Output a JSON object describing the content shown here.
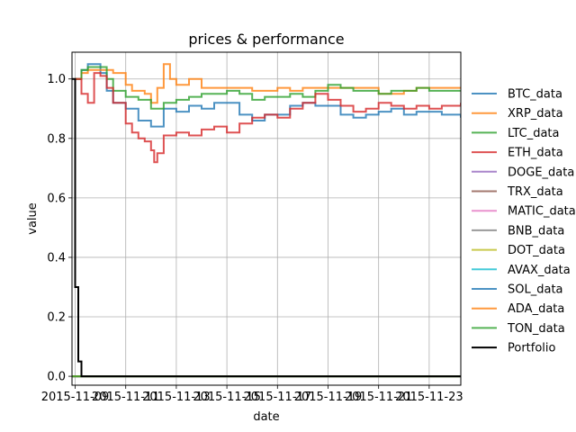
{
  "chart_data": {
    "type": "line",
    "title": "prices & performance",
    "xlabel": "date",
    "ylabel": "value",
    "xlim": [
      "2015-11-08T21:00",
      "2015-11-24T06:00"
    ],
    "ylim": [
      -0.03,
      1.09
    ],
    "grid": true,
    "legend_position": "right",
    "xticks": [
      "2015-11-09",
      "2015-11-11",
      "2015-11-13",
      "2015-11-15",
      "2015-11-17",
      "2015-11-19",
      "2015-11-21",
      "2015-11-23"
    ],
    "yticks": [
      "0.0",
      "0.2",
      "0.4",
      "0.6",
      "0.8",
      "1.0"
    ],
    "series": [
      {
        "name": "BTC_data",
        "color": "#1f77b4",
        "points": [
          [
            "2015-11-09T00:00",
            1.0
          ],
          [
            "2015-11-09T06:00",
            1.03
          ],
          [
            "2015-11-09T12:00",
            1.05
          ],
          [
            "2015-11-10T00:00",
            1.02
          ],
          [
            "2015-11-10T06:00",
            0.96
          ],
          [
            "2015-11-10T12:00",
            0.92
          ],
          [
            "2015-11-11T00:00",
            0.9
          ],
          [
            "2015-11-11T12:00",
            0.86
          ],
          [
            "2015-11-12T00:00",
            0.84
          ],
          [
            "2015-11-12T12:00",
            0.9
          ],
          [
            "2015-11-13T00:00",
            0.89
          ],
          [
            "2015-11-13T12:00",
            0.91
          ],
          [
            "2015-11-14T00:00",
            0.9
          ],
          [
            "2015-11-14T12:00",
            0.92
          ],
          [
            "2015-11-15T00:00",
            0.92
          ],
          [
            "2015-11-15T12:00",
            0.88
          ],
          [
            "2015-11-16T00:00",
            0.86
          ],
          [
            "2015-11-16T12:00",
            0.88
          ],
          [
            "2015-11-17T00:00",
            0.88
          ],
          [
            "2015-11-17T12:00",
            0.91
          ],
          [
            "2015-11-18T00:00",
            0.92
          ],
          [
            "2015-11-18T12:00",
            0.91
          ],
          [
            "2015-11-19T00:00",
            0.91
          ],
          [
            "2015-11-19T12:00",
            0.88
          ],
          [
            "2015-11-20T00:00",
            0.87
          ],
          [
            "2015-11-20T12:00",
            0.88
          ],
          [
            "2015-11-21T00:00",
            0.89
          ],
          [
            "2015-11-21T12:00",
            0.9
          ],
          [
            "2015-11-22T00:00",
            0.88
          ],
          [
            "2015-11-22T12:00",
            0.89
          ],
          [
            "2015-11-23T00:00",
            0.89
          ],
          [
            "2015-11-23T12:00",
            0.88
          ],
          [
            "2015-11-24T06:00",
            0.87
          ]
        ]
      },
      {
        "name": "XRP_data",
        "color": "#ff7f0e",
        "points": [
          [
            "2015-11-09T00:00",
            1.0
          ],
          [
            "2015-11-09T06:00",
            1.02
          ],
          [
            "2015-11-09T12:00",
            1.03
          ],
          [
            "2015-11-10T00:00",
            1.03
          ],
          [
            "2015-11-10T12:00",
            1.02
          ],
          [
            "2015-11-11T00:00",
            0.98
          ],
          [
            "2015-11-11T06:00",
            0.96
          ],
          [
            "2015-11-11T18:00",
            0.95
          ],
          [
            "2015-11-12T00:00",
            0.92
          ],
          [
            "2015-11-12T06:00",
            0.97
          ],
          [
            "2015-11-12T12:00",
            1.05
          ],
          [
            "2015-11-12T18:00",
            1.0
          ],
          [
            "2015-11-13T00:00",
            0.98
          ],
          [
            "2015-11-13T12:00",
            1.0
          ],
          [
            "2015-11-14T00:00",
            0.97
          ],
          [
            "2015-11-15T00:00",
            0.97
          ],
          [
            "2015-11-16T00:00",
            0.96
          ],
          [
            "2015-11-17T00:00",
            0.97
          ],
          [
            "2015-11-17T12:00",
            0.96
          ],
          [
            "2015-11-18T00:00",
            0.97
          ],
          [
            "2015-11-19T00:00",
            0.97
          ],
          [
            "2015-11-20T00:00",
            0.97
          ],
          [
            "2015-11-21T00:00",
            0.95
          ],
          [
            "2015-11-22T00:00",
            0.96
          ],
          [
            "2015-11-22T12:00",
            0.97
          ],
          [
            "2015-11-23T00:00",
            0.97
          ],
          [
            "2015-11-24T06:00",
            0.97
          ]
        ]
      },
      {
        "name": "LTC_data",
        "color": "#2ca02c",
        "points": [
          [
            "2015-11-09T00:00",
            1.0
          ],
          [
            "2015-11-09T06:00",
            1.03
          ],
          [
            "2015-11-09T12:00",
            1.04
          ],
          [
            "2015-11-10T00:00",
            1.04
          ],
          [
            "2015-11-10T06:00",
            1.0
          ],
          [
            "2015-11-10T12:00",
            0.96
          ],
          [
            "2015-11-11T00:00",
            0.94
          ],
          [
            "2015-11-11T12:00",
            0.93
          ],
          [
            "2015-11-12T00:00",
            0.9
          ],
          [
            "2015-11-12T12:00",
            0.92
          ],
          [
            "2015-11-13T00:00",
            0.93
          ],
          [
            "2015-11-13T12:00",
            0.94
          ],
          [
            "2015-11-14T00:00",
            0.95
          ],
          [
            "2015-11-14T12:00",
            0.95
          ],
          [
            "2015-11-15T00:00",
            0.96
          ],
          [
            "2015-11-15T12:00",
            0.95
          ],
          [
            "2015-11-16T00:00",
            0.93
          ],
          [
            "2015-11-16T12:00",
            0.94
          ],
          [
            "2015-11-17T00:00",
            0.94
          ],
          [
            "2015-11-17T12:00",
            0.95
          ],
          [
            "2015-11-18T00:00",
            0.94
          ],
          [
            "2015-11-18T12:00",
            0.96
          ],
          [
            "2015-11-19T00:00",
            0.98
          ],
          [
            "2015-11-19T12:00",
            0.97
          ],
          [
            "2015-11-20T00:00",
            0.96
          ],
          [
            "2015-11-21T00:00",
            0.95
          ],
          [
            "2015-11-21T12:00",
            0.96
          ],
          [
            "2015-11-22T00:00",
            0.96
          ],
          [
            "2015-11-22T12:00",
            0.97
          ],
          [
            "2015-11-23T00:00",
            0.96
          ],
          [
            "2015-11-24T06:00",
            0.96
          ]
        ]
      },
      {
        "name": "ETH_data",
        "color": "#d62728",
        "points": [
          [
            "2015-11-09T00:00",
            1.0
          ],
          [
            "2015-11-09T06:00",
            0.95
          ],
          [
            "2015-11-09T12:00",
            0.92
          ],
          [
            "2015-11-09T18:00",
            1.02
          ],
          [
            "2015-11-10T00:00",
            1.01
          ],
          [
            "2015-11-10T06:00",
            0.97
          ],
          [
            "2015-11-10T12:00",
            0.92
          ],
          [
            "2015-11-11T00:00",
            0.85
          ],
          [
            "2015-11-11T06:00",
            0.82
          ],
          [
            "2015-11-11T12:00",
            0.8
          ],
          [
            "2015-11-11T18:00",
            0.79
          ],
          [
            "2015-11-12T00:00",
            0.76
          ],
          [
            "2015-11-12T03:00",
            0.72
          ],
          [
            "2015-11-12T06:00",
            0.75
          ],
          [
            "2015-11-12T12:00",
            0.81
          ],
          [
            "2015-11-13T00:00",
            0.82
          ],
          [
            "2015-11-13T12:00",
            0.81
          ],
          [
            "2015-11-14T00:00",
            0.83
          ],
          [
            "2015-11-14T12:00",
            0.84
          ],
          [
            "2015-11-15T00:00",
            0.82
          ],
          [
            "2015-11-15T12:00",
            0.85
          ],
          [
            "2015-11-16T00:00",
            0.87
          ],
          [
            "2015-11-16T12:00",
            0.88
          ],
          [
            "2015-11-17T00:00",
            0.87
          ],
          [
            "2015-11-17T12:00",
            0.9
          ],
          [
            "2015-11-18T00:00",
            0.92
          ],
          [
            "2015-11-18T12:00",
            0.95
          ],
          [
            "2015-11-19T00:00",
            0.93
          ],
          [
            "2015-11-19T12:00",
            0.91
          ],
          [
            "2015-11-20T00:00",
            0.89
          ],
          [
            "2015-11-20T12:00",
            0.9
          ],
          [
            "2015-11-21T00:00",
            0.92
          ],
          [
            "2015-11-21T12:00",
            0.91
          ],
          [
            "2015-11-22T00:00",
            0.9
          ],
          [
            "2015-11-22T12:00",
            0.91
          ],
          [
            "2015-11-23T00:00",
            0.9
          ],
          [
            "2015-11-23T12:00",
            0.91
          ],
          [
            "2015-11-24T06:00",
            0.92
          ]
        ]
      },
      {
        "name": "DOGE_data",
        "color": "#9467bd",
        "points": [
          [
            "2015-11-08T21:00",
            0.0
          ],
          [
            "2015-11-24T06:00",
            0.0
          ]
        ]
      },
      {
        "name": "TRX_data",
        "color": "#8c564b",
        "points": [
          [
            "2015-11-08T21:00",
            0.0
          ],
          [
            "2015-11-24T06:00",
            0.0
          ]
        ]
      },
      {
        "name": "MATIC_data",
        "color": "#e377c2",
        "points": [
          [
            "2015-11-08T21:00",
            0.0
          ],
          [
            "2015-11-24T06:00",
            0.0
          ]
        ]
      },
      {
        "name": "BNB_data",
        "color": "#7f7f7f",
        "points": [
          [
            "2015-11-08T21:00",
            0.0
          ],
          [
            "2015-11-24T06:00",
            0.0
          ]
        ]
      },
      {
        "name": "DOT_data",
        "color": "#bcbd22",
        "points": [
          [
            "2015-11-08T21:00",
            0.0
          ],
          [
            "2015-11-24T06:00",
            0.0
          ]
        ]
      },
      {
        "name": "AVAX_data",
        "color": "#17becf",
        "points": [
          [
            "2015-11-08T21:00",
            0.0
          ],
          [
            "2015-11-24T06:00",
            0.0
          ]
        ]
      },
      {
        "name": "SOL_data",
        "color": "#1f77b4",
        "points": [
          [
            "2015-11-08T21:00",
            0.0
          ],
          [
            "2015-11-24T06:00",
            0.0
          ]
        ]
      },
      {
        "name": "ADA_data",
        "color": "#ff7f0e",
        "points": [
          [
            "2015-11-08T21:00",
            0.0
          ],
          [
            "2015-11-24T06:00",
            0.0
          ]
        ]
      },
      {
        "name": "TON_data",
        "color": "#2ca02c",
        "points": [
          [
            "2015-11-08T21:00",
            0.0
          ],
          [
            "2015-11-24T06:00",
            0.0
          ]
        ]
      },
      {
        "name": "Portfolio",
        "color": "#000000",
        "points": [
          [
            "2015-11-08T21:00",
            1.0
          ],
          [
            "2015-11-09T00:00",
            0.3
          ],
          [
            "2015-11-09T03:00",
            0.05
          ],
          [
            "2015-11-09T06:00",
            0.0
          ],
          [
            "2015-11-24T06:00",
            0.0
          ]
        ]
      }
    ]
  }
}
